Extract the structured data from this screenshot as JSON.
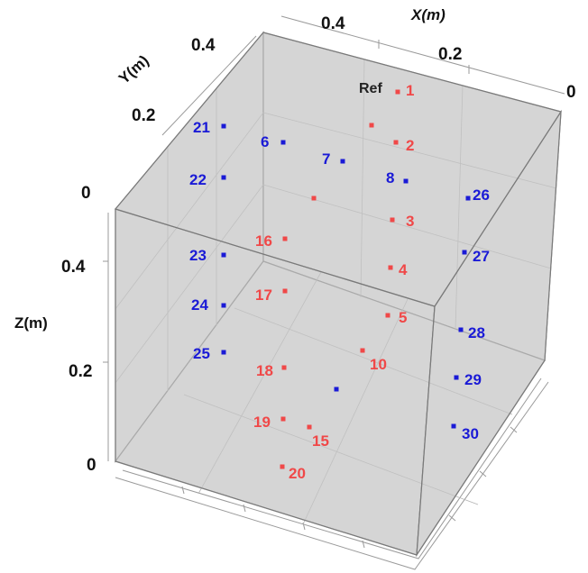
{
  "chart_data": {
    "type": "scatter",
    "projection": "3d",
    "title": "",
    "axes": {
      "x": {
        "label": "X(m)",
        "ticks": [
          "0.4",
          "0.2",
          "0"
        ]
      },
      "y": {
        "label": "Y(m)",
        "ticks": [
          "0.4",
          "0.2",
          "0"
        ]
      },
      "z": {
        "label": "Z(m)",
        "ticks": [
          "0.4",
          "0.2",
          "0"
        ]
      }
    },
    "grid": true,
    "box": true,
    "colors": {
      "red_series": "#f04848",
      "blue_series": "#1a1ad6",
      "box_fill": "#d6d6d6",
      "box_edge": "#8a8a8a"
    },
    "annotations": [
      {
        "text": "Ref",
        "attached_to": "1"
      }
    ],
    "series": [
      {
        "color_key": "red_series",
        "points": [
          {
            "label": "1"
          },
          {
            "label": "2"
          },
          {
            "label": "3"
          },
          {
            "label": "4"
          },
          {
            "label": "5"
          },
          {
            "label": "10"
          },
          {
            "label": "15"
          },
          {
            "label": "16"
          },
          {
            "label": "17"
          },
          {
            "label": "18"
          },
          {
            "label": "19"
          },
          {
            "label": "20"
          },
          {
            "label": ""
          },
          {
            "label": ""
          }
        ]
      },
      {
        "color_key": "blue_series",
        "points": [
          {
            "label": "6"
          },
          {
            "label": "7"
          },
          {
            "label": "8"
          },
          {
            "label": "21"
          },
          {
            "label": "22"
          },
          {
            "label": "23"
          },
          {
            "label": "24"
          },
          {
            "label": "25"
          },
          {
            "label": "26"
          },
          {
            "label": "27"
          },
          {
            "label": "28"
          },
          {
            "label": "29"
          },
          {
            "label": "30"
          },
          {
            "label": ""
          }
        ]
      }
    ]
  }
}
